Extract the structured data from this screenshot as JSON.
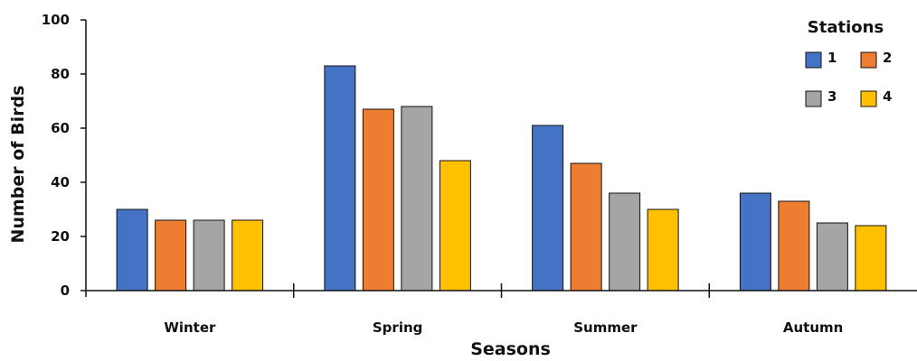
{
  "chart_data": {
    "type": "bar",
    "title": "",
    "xlabel": "Seasons",
    "ylabel": "Number of Birds",
    "ylim": [
      0,
      100
    ],
    "yticks": [
      0,
      20,
      40,
      60,
      80,
      100
    ],
    "grid": false,
    "categories": [
      "Winter",
      "Spring",
      "Summer",
      "Autumn"
    ],
    "legend": {
      "title": "Stations",
      "placement": "top-right"
    },
    "series": [
      {
        "name": "1",
        "color": "#4472C4",
        "values": [
          30,
          83,
          61,
          36
        ]
      },
      {
        "name": "2",
        "color": "#ED7D31",
        "values": [
          26,
          67,
          47,
          33
        ]
      },
      {
        "name": "3",
        "color": "#A5A5A5",
        "values": [
          26,
          68,
          36,
          25
        ]
      },
      {
        "name": "4",
        "color": "#FFC000",
        "values": [
          26,
          48,
          30,
          24
        ]
      }
    ]
  }
}
